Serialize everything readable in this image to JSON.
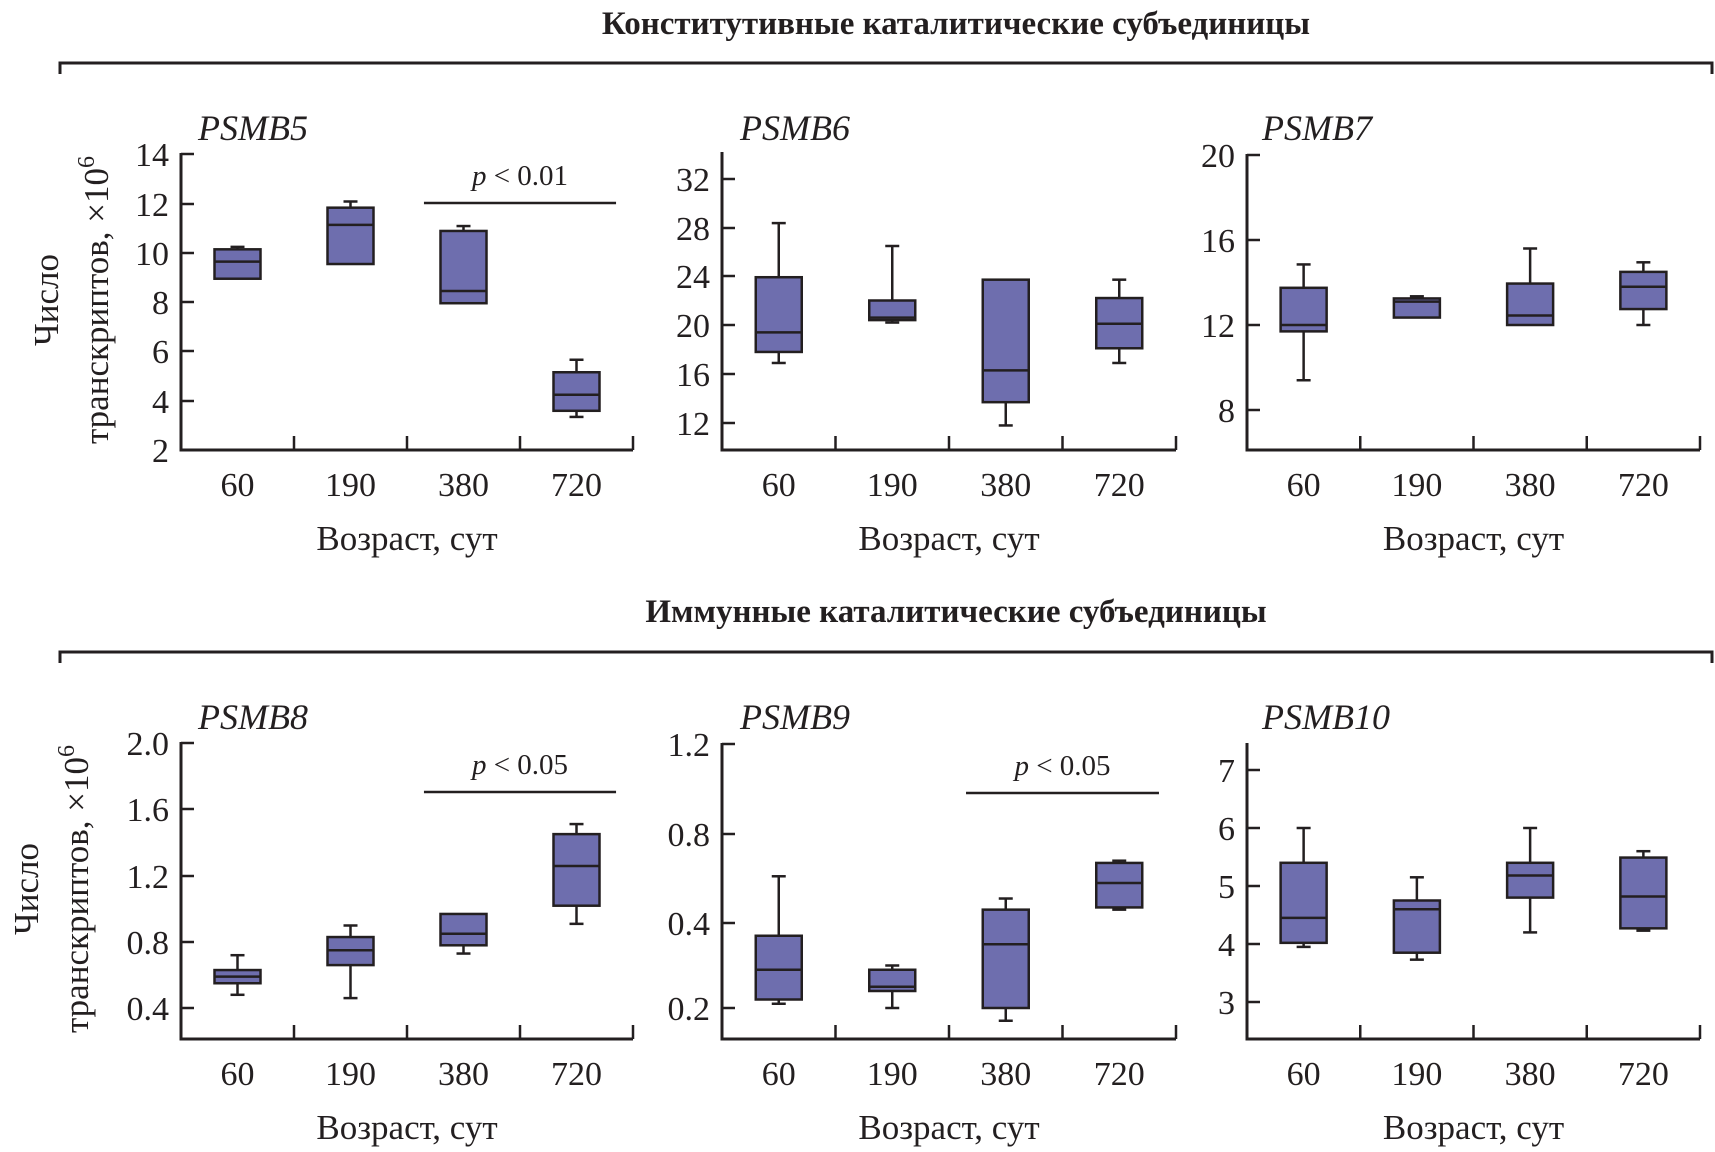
{
  "sections": [
    {
      "heading": "Конститутивные каталитические субъединицы"
    },
    {
      "heading": "Иммунные каталитические субъединицы"
    }
  ],
  "y_label_line1": "Число",
  "y_label_line2": "транскриптов, ×10",
  "y_label_exp": "6",
  "colors": {
    "box_fill": "#6e6eae",
    "stroke": "#231f20"
  },
  "chart_data": [
    {
      "type": "box",
      "title": "PSMB5",
      "xlabel": "Возраст, сут",
      "ylabel": "Число транскриптов, ×10^6",
      "categories": [
        "60",
        "190",
        "380",
        "720"
      ],
      "yticks": [
        2,
        4,
        6,
        8,
        10,
        12,
        14
      ],
      "ylim": [
        2,
        14
      ],
      "boxes": [
        {
          "whisker_low": 8.95,
          "q1": 8.95,
          "median": 9.65,
          "q3": 10.15,
          "whisker_high": 10.25
        },
        {
          "whisker_low": 9.55,
          "q1": 9.55,
          "median": 11.15,
          "q3": 11.85,
          "whisker_high": 12.1
        },
        {
          "whisker_low": 7.95,
          "q1": 7.95,
          "median": 8.45,
          "q3": 10.9,
          "whisker_high": 11.1
        },
        {
          "whisker_low": 3.35,
          "q1": 3.6,
          "median": 4.25,
          "q3": 5.15,
          "whisker_high": 5.65
        }
      ],
      "annotation": {
        "text_p": "p",
        "text_rest": " < 0.01",
        "from": 2,
        "to": 3
      }
    },
    {
      "type": "box",
      "title": "PSMB6",
      "xlabel": "Возраст, сут",
      "categories": [
        "60",
        "190",
        "380",
        "720"
      ],
      "yticks": [
        12,
        16,
        20,
        24,
        28,
        32
      ],
      "ylim": [
        9.8,
        34.2
      ],
      "boxes": [
        {
          "whisker_low": 16.9,
          "q1": 17.8,
          "median": 19.4,
          "q3": 23.9,
          "whisker_high": 28.4
        },
        {
          "whisker_low": 20.2,
          "q1": 20.4,
          "median": 20.6,
          "q3": 22.0,
          "whisker_high": 26.5
        },
        {
          "whisker_low": 11.8,
          "q1": 13.7,
          "median": 16.3,
          "q3": 23.7,
          "whisker_high": 23.7
        },
        {
          "whisker_low": 16.9,
          "q1": 18.1,
          "median": 20.1,
          "q3": 22.2,
          "whisker_high": 23.7
        }
      ]
    },
    {
      "type": "box",
      "title": "PSMB7",
      "xlabel": "Возраст, сут",
      "categories": [
        "60",
        "190",
        "380",
        "720"
      ],
      "yticks": [
        8,
        12,
        16,
        20
      ],
      "ylim": [
        6.16,
        20
      ],
      "boxes": [
        {
          "whisker_low": 9.4,
          "q1": 11.7,
          "median": 12.0,
          "q3": 13.75,
          "whisker_high": 14.85
        },
        {
          "whisker_low": 12.35,
          "q1": 12.35,
          "median": 13.1,
          "q3": 13.25,
          "whisker_high": 13.35
        },
        {
          "whisker_low": 12.0,
          "q1": 12.0,
          "median": 12.45,
          "q3": 13.95,
          "whisker_high": 15.6
        },
        {
          "whisker_low": 12.0,
          "q1": 12.75,
          "median": 13.8,
          "q3": 14.5,
          "whisker_high": 14.95
        }
      ]
    },
    {
      "type": "box",
      "title": "PSMB8",
      "xlabel": "Возраст, сут",
      "ylabel": "Число транскриптов, ×10^6",
      "categories": [
        "60",
        "190",
        "380",
        "720"
      ],
      "yticks": [
        0.4,
        0.8,
        1.2,
        1.6,
        2.0
      ],
      "ytick_labels": [
        "0.4",
        "0.8",
        "1.2",
        "1.6",
        "2.0"
      ],
      "ylim": [
        0.21,
        2.0
      ],
      "boxes": [
        {
          "whisker_low": 0.48,
          "q1": 0.55,
          "median": 0.59,
          "q3": 0.63,
          "whisker_high": 0.72
        },
        {
          "whisker_low": 0.46,
          "q1": 0.66,
          "median": 0.75,
          "q3": 0.83,
          "whisker_high": 0.9
        },
        {
          "whisker_low": 0.73,
          "q1": 0.78,
          "median": 0.85,
          "q3": 0.97,
          "whisker_high": 0.97
        },
        {
          "whisker_low": 0.91,
          "q1": 1.02,
          "median": 1.26,
          "q3": 1.45,
          "whisker_high": 1.51
        }
      ],
      "annotation": {
        "text_p": "p",
        "text_rest": " < 0.05",
        "from": 2,
        "to": 3
      }
    },
    {
      "type": "box",
      "title": "PSMB9",
      "xlabel": "Возраст, сут",
      "categories": [
        "60",
        "190",
        "380",
        "720"
      ],
      "yticks": [
        0.2,
        0.4,
        0.8,
        1.2
      ],
      "ytick_labels": [
        "0.2",
        "0.4",
        "0.8",
        "1.2"
      ],
      "yscale": "nonlinear-equal-spaced-ticks",
      "ylim": [
        0.1,
        1.2
      ],
      "boxes": [
        {
          "whisker_low": 0.21,
          "q1": 0.22,
          "median": 0.29,
          "q3": 0.37,
          "whisker_high": 0.61
        },
        {
          "whisker_low": 0.2,
          "q1": 0.24,
          "median": 0.25,
          "q3": 0.29,
          "whisker_high": 0.3
        },
        {
          "whisker_low": 0.17,
          "q1": 0.2,
          "median": 0.35,
          "q3": 0.46,
          "whisker_high": 0.51
        },
        {
          "whisker_low": 0.46,
          "q1": 0.47,
          "median": 0.58,
          "q3": 0.67,
          "whisker_high": 0.68
        }
      ],
      "annotation": {
        "text_p": "p",
        "text_rest": " < 0.05",
        "from": 2,
        "to": 3
      }
    },
    {
      "type": "box",
      "title": "PSMB10",
      "xlabel": "Возраст, сут",
      "categories": [
        "60",
        "190",
        "380",
        "720"
      ],
      "yticks": [
        3,
        4,
        5,
        6,
        7
      ],
      "ylim": [
        2.37,
        7.64
      ],
      "boxes": [
        {
          "whisker_low": 3.95,
          "q1": 4.02,
          "median": 4.45,
          "q3": 5.4,
          "whisker_high": 6.0
        },
        {
          "whisker_low": 3.73,
          "q1": 3.85,
          "median": 4.6,
          "q3": 4.75,
          "whisker_high": 5.15
        },
        {
          "whisker_low": 4.2,
          "q1": 4.8,
          "median": 5.18,
          "q3": 5.4,
          "whisker_high": 6.0
        },
        {
          "whisker_low": 4.23,
          "q1": 4.27,
          "median": 4.82,
          "q3": 5.49,
          "whisker_high": 5.6
        }
      ]
    }
  ]
}
